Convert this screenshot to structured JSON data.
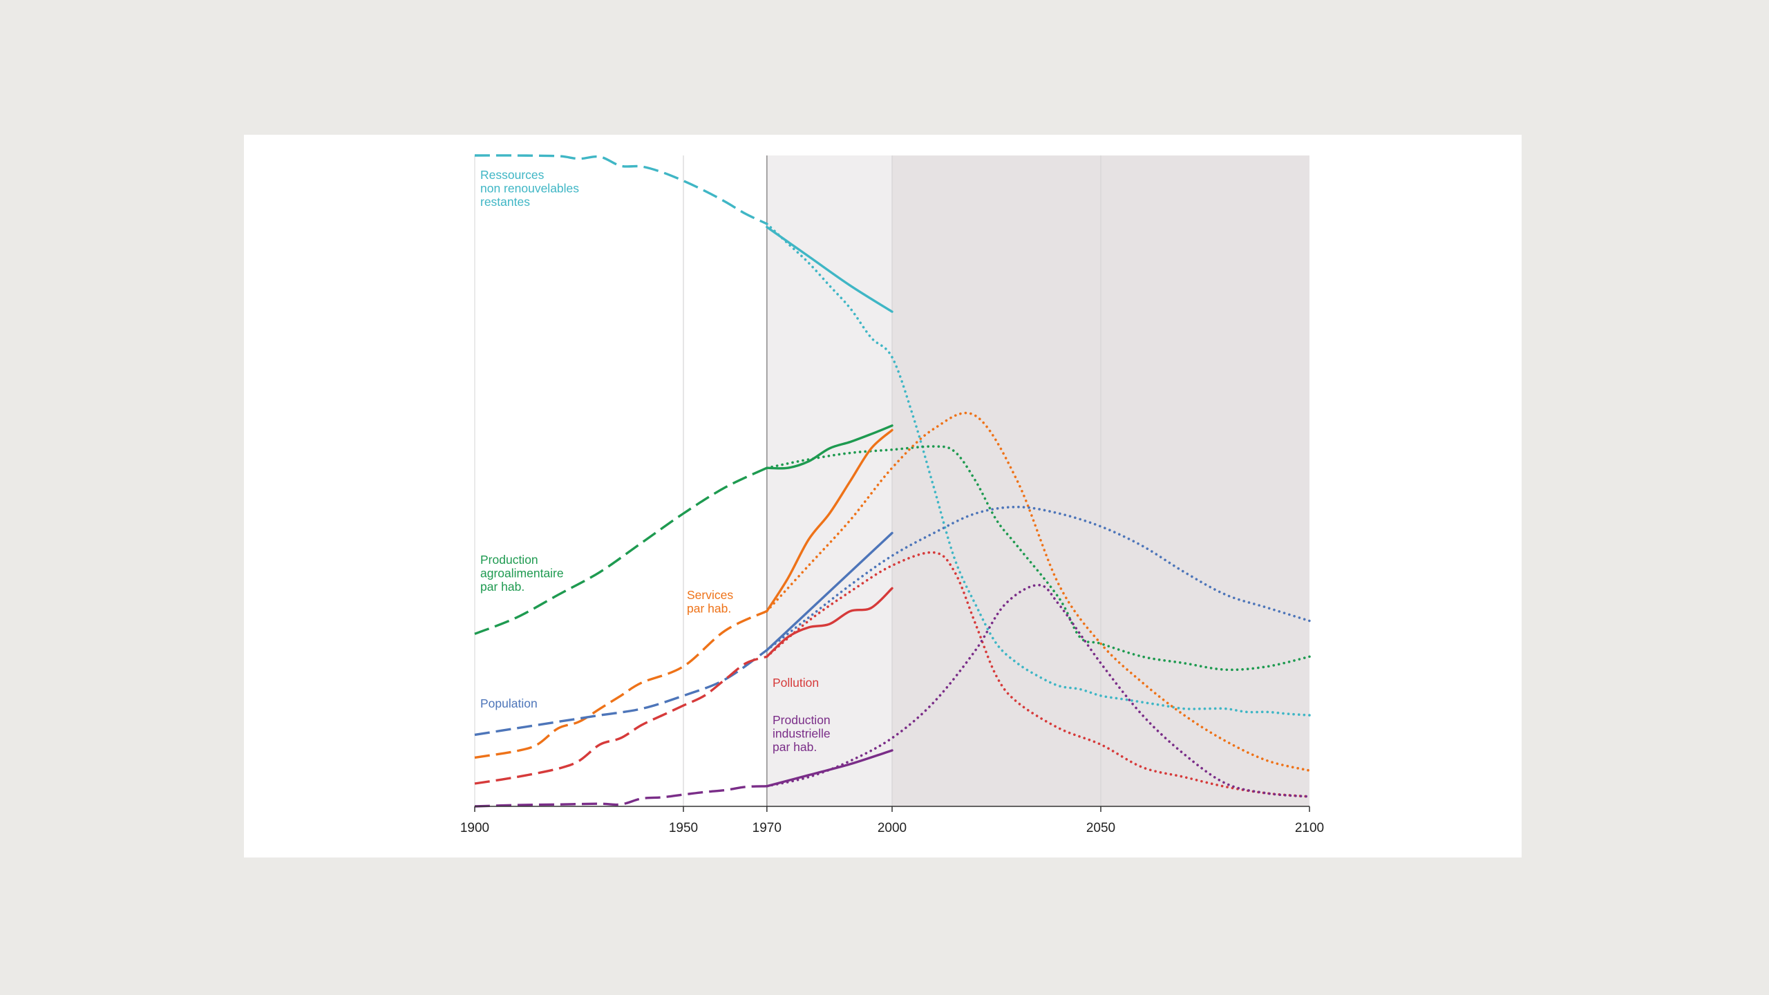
{
  "chart_data": {
    "type": "line",
    "title": "",
    "xlabel": "",
    "ylabel": "",
    "xlim": [
      1900,
      2100
    ],
    "ylim": [
      0,
      100
    ],
    "x_ticks": [
      1900,
      1950,
      1970,
      2000,
      2050,
      2100
    ],
    "x_tick_labels": [
      "1900",
      "1950",
      "1970",
      "2000",
      "2050",
      "2100"
    ],
    "vertical_gridlines": [
      1950,
      2000,
      2050
    ],
    "shaded_regions": [
      {
        "from": 1970,
        "to": 2000,
        "color": "#f0eeef",
        "meaning": "observed data period"
      },
      {
        "from": 2000,
        "to": 2100,
        "color": "#e6e2e3",
        "meaning": "projection period"
      }
    ],
    "line_styles": {
      "historical": "dashed (1900–1970)",
      "model_run": "dotted (1970–2100)",
      "observed": "solid (1970–2000)"
    },
    "series": [
      {
        "name": "Ressources non renouvelables restantes",
        "label_lines": [
          "Ressources",
          "non renouvelables",
          "restantes"
        ],
        "color": "#3fb6c5",
        "historical": [
          [
            1900,
            100
          ],
          [
            1910,
            100
          ],
          [
            1920,
            99.9
          ],
          [
            1925,
            99.5
          ],
          [
            1930,
            99.8
          ],
          [
            1935,
            98.4
          ],
          [
            1940,
            98.3
          ],
          [
            1945,
            97.4
          ],
          [
            1950,
            96.1
          ],
          [
            1955,
            94.6
          ],
          [
            1960,
            92.9
          ],
          [
            1965,
            91
          ],
          [
            1970,
            89.5
          ]
        ],
        "model": [
          [
            1970,
            89.5
          ],
          [
            1975,
            86.5
          ],
          [
            1980,
            83.5
          ],
          [
            1985,
            80
          ],
          [
            1990,
            76.5
          ],
          [
            1995,
            72
          ],
          [
            2000,
            69
          ],
          [
            2005,
            60
          ],
          [
            2010,
            49
          ],
          [
            2015,
            38
          ],
          [
            2020,
            31
          ],
          [
            2025,
            25
          ],
          [
            2030,
            22
          ],
          [
            2035,
            20
          ],
          [
            2040,
            18.5
          ],
          [
            2045,
            18
          ],
          [
            2050,
            17
          ],
          [
            2055,
            16.5
          ],
          [
            2060,
            16
          ],
          [
            2065,
            15.5
          ],
          [
            2070,
            15
          ],
          [
            2075,
            15
          ],
          [
            2080,
            15
          ],
          [
            2085,
            14.5
          ],
          [
            2090,
            14.5
          ],
          [
            2095,
            14.2
          ],
          [
            2100,
            14
          ]
        ],
        "observed": [
          [
            1970,
            89
          ],
          [
            1980,
            84.5
          ],
          [
            1990,
            80
          ],
          [
            2000,
            76
          ]
        ]
      },
      {
        "name": "Production agroalimentaire par hab.",
        "label_lines": [
          "Production",
          "agroalimentaire",
          "par hab."
        ],
        "color": "#1e9a50",
        "historical": [
          [
            1900,
            26.5
          ],
          [
            1910,
            29
          ],
          [
            1920,
            32.5
          ],
          [
            1930,
            36
          ],
          [
            1940,
            40.5
          ],
          [
            1950,
            45
          ],
          [
            1960,
            49
          ],
          [
            1970,
            52
          ]
        ],
        "model": [
          [
            1970,
            52
          ],
          [
            1980,
            53.3
          ],
          [
            1990,
            54.3
          ],
          [
            2000,
            54.8
          ],
          [
            2010,
            55.3
          ],
          [
            2015,
            54.5
          ],
          [
            2020,
            50
          ],
          [
            2025,
            44
          ],
          [
            2030,
            40
          ],
          [
            2040,
            32
          ],
          [
            2045,
            26
          ],
          [
            2050,
            25
          ],
          [
            2060,
            23
          ],
          [
            2070,
            22
          ],
          [
            2080,
            21
          ],
          [
            2090,
            21.5
          ],
          [
            2100,
            23
          ]
        ],
        "observed": [
          [
            1970,
            52
          ],
          [
            1975,
            52
          ],
          [
            1980,
            53
          ],
          [
            1985,
            55
          ],
          [
            1990,
            56
          ],
          [
            1995,
            57.2
          ],
          [
            2000,
            58.5
          ]
        ]
      },
      {
        "name": "Services par hab.",
        "label_lines": [
          "Services",
          "par hab."
        ],
        "color": "#ee7218",
        "historical": [
          [
            1900,
            7.5
          ],
          [
            1910,
            8.5
          ],
          [
            1915,
            9.5
          ],
          [
            1920,
            12
          ],
          [
            1925,
            13
          ],
          [
            1930,
            15
          ],
          [
            1935,
            17
          ],
          [
            1940,
            19
          ],
          [
            1950,
            21.5
          ],
          [
            1960,
            27
          ],
          [
            1970,
            30
          ]
        ],
        "model": [
          [
            1970,
            30
          ],
          [
            1980,
            37
          ],
          [
            1990,
            44
          ],
          [
            2000,
            52
          ],
          [
            2010,
            58
          ],
          [
            2020,
            60
          ],
          [
            2030,
            50
          ],
          [
            2040,
            34
          ],
          [
            2050,
            25
          ],
          [
            2060,
            19
          ],
          [
            2070,
            14
          ],
          [
            2080,
            10
          ],
          [
            2090,
            7
          ],
          [
            2100,
            5.5
          ]
        ],
        "observed": [
          [
            1970,
            30
          ],
          [
            1975,
            35
          ],
          [
            1980,
            41
          ],
          [
            1985,
            45
          ],
          [
            1990,
            50
          ],
          [
            1995,
            55
          ],
          [
            2000,
            57.8
          ]
        ]
      },
      {
        "name": "Population",
        "label_lines": [
          "Population"
        ],
        "color": "#4d75b9",
        "historical": [
          [
            1900,
            11
          ],
          [
            1910,
            12
          ],
          [
            1920,
            13
          ],
          [
            1930,
            14
          ],
          [
            1940,
            15
          ],
          [
            1950,
            17
          ],
          [
            1960,
            19.5
          ],
          [
            1970,
            24
          ]
        ],
        "model": [
          [
            1970,
            24
          ],
          [
            1980,
            29
          ],
          [
            1990,
            34
          ],
          [
            2000,
            38.5
          ],
          [
            2010,
            42
          ],
          [
            2020,
            45
          ],
          [
            2030,
            46
          ],
          [
            2040,
            45
          ],
          [
            2050,
            43
          ],
          [
            2060,
            40
          ],
          [
            2070,
            36
          ],
          [
            2080,
            32.5
          ],
          [
            2090,
            30.5
          ],
          [
            2100,
            28.5
          ]
        ],
        "observed": [
          [
            1970,
            24
          ],
          [
            1980,
            30
          ],
          [
            1990,
            36
          ],
          [
            2000,
            42
          ]
        ]
      },
      {
        "name": "Pollution",
        "label_lines": [
          "Pollution"
        ],
        "color": "#d63a3a",
        "historical": [
          [
            1900,
            3.5
          ],
          [
            1910,
            4.5
          ],
          [
            1920,
            5.8
          ],
          [
            1925,
            7
          ],
          [
            1930,
            9.5
          ],
          [
            1935,
            10.5
          ],
          [
            1940,
            12.5
          ],
          [
            1945,
            14
          ],
          [
            1950,
            15.5
          ],
          [
            1955,
            17
          ],
          [
            1960,
            19.5
          ],
          [
            1965,
            22
          ],
          [
            1970,
            23
          ]
        ],
        "model": [
          [
            1970,
            23
          ],
          [
            1980,
            28.5
          ],
          [
            1990,
            33
          ],
          [
            2000,
            37
          ],
          [
            2010,
            39
          ],
          [
            2015,
            36
          ],
          [
            2020,
            28
          ],
          [
            2025,
            20
          ],
          [
            2030,
            16
          ],
          [
            2040,
            12
          ],
          [
            2050,
            9.5
          ],
          [
            2060,
            6
          ],
          [
            2070,
            4.5
          ],
          [
            2080,
            3
          ],
          [
            2090,
            2
          ],
          [
            2100,
            1.5
          ]
        ],
        "observed": [
          [
            1970,
            23
          ],
          [
            1975,
            26
          ],
          [
            1980,
            27.5
          ],
          [
            1985,
            28
          ],
          [
            1990,
            30
          ],
          [
            1995,
            30.5
          ],
          [
            2000,
            33.5
          ]
        ]
      },
      {
        "name": "Production industrielle par hab.",
        "label_lines": [
          "Production",
          "industrielle",
          "par hab."
        ],
        "color": "#7a2d88",
        "historical": [
          [
            1900,
            0
          ],
          [
            1910,
            0.2
          ],
          [
            1920,
            0.3
          ],
          [
            1930,
            0.4
          ],
          [
            1935,
            0.3
          ],
          [
            1940,
            1.2
          ],
          [
            1945,
            1.4
          ],
          [
            1950,
            1.8
          ],
          [
            1955,
            2.2
          ],
          [
            1960,
            2.5
          ],
          [
            1965,
            3
          ],
          [
            1970,
            3.1
          ]
        ],
        "model": [
          [
            1970,
            3.1
          ],
          [
            1980,
            4.5
          ],
          [
            1990,
            7
          ],
          [
            2000,
            10.5
          ],
          [
            2010,
            16
          ],
          [
            2020,
            24
          ],
          [
            2027,
            31
          ],
          [
            2035,
            34
          ],
          [
            2040,
            31
          ],
          [
            2050,
            22
          ],
          [
            2060,
            14
          ],
          [
            2070,
            8
          ],
          [
            2080,
            3.5
          ],
          [
            2090,
            2
          ],
          [
            2100,
            1.5
          ]
        ],
        "observed": [
          [
            1970,
            3.1
          ],
          [
            1980,
            4.8
          ],
          [
            1990,
            6.5
          ],
          [
            2000,
            8.6
          ]
        ]
      }
    ]
  }
}
